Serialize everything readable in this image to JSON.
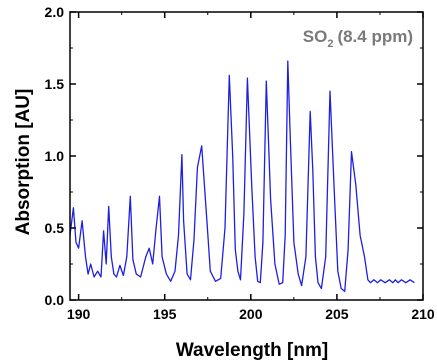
{
  "chart_data": {
    "type": "line",
    "xlabel": "Wavelength [nm]",
    "ylabel": "Absorption [AU]",
    "xlim": [
      189.5,
      210
    ],
    "ylim": [
      0,
      2.0
    ],
    "xticks": [
      "190",
      "195",
      "200",
      "205",
      "210"
    ],
    "yticks": [
      "0.0",
      "0.5",
      "1.0",
      "1.5",
      "2.0"
    ],
    "grid": false,
    "annotation": {
      "species": "SO",
      "subscript": "2",
      "concentration": "(8.4 ppm)",
      "color": "#7a7a7a",
      "placement": "top-right"
    },
    "series": [
      {
        "color": "#1f1fe0",
        "x": [
          189.5,
          189.7,
          189.85,
          190.0,
          190.2,
          190.4,
          190.55,
          190.7,
          190.9,
          191.1,
          191.3,
          191.45,
          191.6,
          191.75,
          191.9,
          192.05,
          192.2,
          192.4,
          192.6,
          192.8,
          193.0,
          193.15,
          193.35,
          193.6,
          193.9,
          194.1,
          194.3,
          194.5,
          194.7,
          194.85,
          195.1,
          195.35,
          195.6,
          195.8,
          196.0,
          196.1,
          196.3,
          196.5,
          196.7,
          196.9,
          197.15,
          197.45,
          197.65,
          197.95,
          198.25,
          198.5,
          198.75,
          198.95,
          199.1,
          199.25,
          199.4,
          199.6,
          199.8,
          200.05,
          200.25,
          200.4,
          200.55,
          200.7,
          200.9,
          201.15,
          201.4,
          201.65,
          201.85,
          202.0,
          202.15,
          202.3,
          202.5,
          202.75,
          202.95,
          203.2,
          203.45,
          203.6,
          203.75,
          203.9,
          204.1,
          204.35,
          204.6,
          204.85,
          205.05,
          205.25,
          205.45,
          205.65,
          205.85,
          206.1,
          206.35,
          206.6,
          206.8,
          206.95,
          207.15,
          207.35,
          207.55,
          207.8,
          208.05,
          208.25,
          208.4,
          208.55,
          208.75,
          209.0,
          209.25,
          209.5
        ],
        "y": [
          0.45,
          0.64,
          0.4,
          0.36,
          0.55,
          0.3,
          0.18,
          0.25,
          0.16,
          0.2,
          0.16,
          0.48,
          0.25,
          0.65,
          0.3,
          0.18,
          0.16,
          0.24,
          0.17,
          0.3,
          0.72,
          0.28,
          0.18,
          0.16,
          0.3,
          0.36,
          0.25,
          0.5,
          0.72,
          0.3,
          0.18,
          0.13,
          0.2,
          0.45,
          1.01,
          0.55,
          0.18,
          0.14,
          0.42,
          0.92,
          1.07,
          0.55,
          0.2,
          0.13,
          0.15,
          0.5,
          1.56,
          1.0,
          0.35,
          0.2,
          0.14,
          0.6,
          1.54,
          0.8,
          0.3,
          0.13,
          0.12,
          0.4,
          1.52,
          0.7,
          0.25,
          0.11,
          0.12,
          0.45,
          1.66,
          1.1,
          0.4,
          0.18,
          0.1,
          0.3,
          1.31,
          0.9,
          0.3,
          0.12,
          0.08,
          0.3,
          1.45,
          0.75,
          0.2,
          0.08,
          0.06,
          0.35,
          1.03,
          0.8,
          0.45,
          0.3,
          0.14,
          0.12,
          0.14,
          0.12,
          0.14,
          0.12,
          0.14,
          0.12,
          0.14,
          0.12,
          0.14,
          0.12,
          0.14,
          0.12
        ]
      }
    ]
  }
}
